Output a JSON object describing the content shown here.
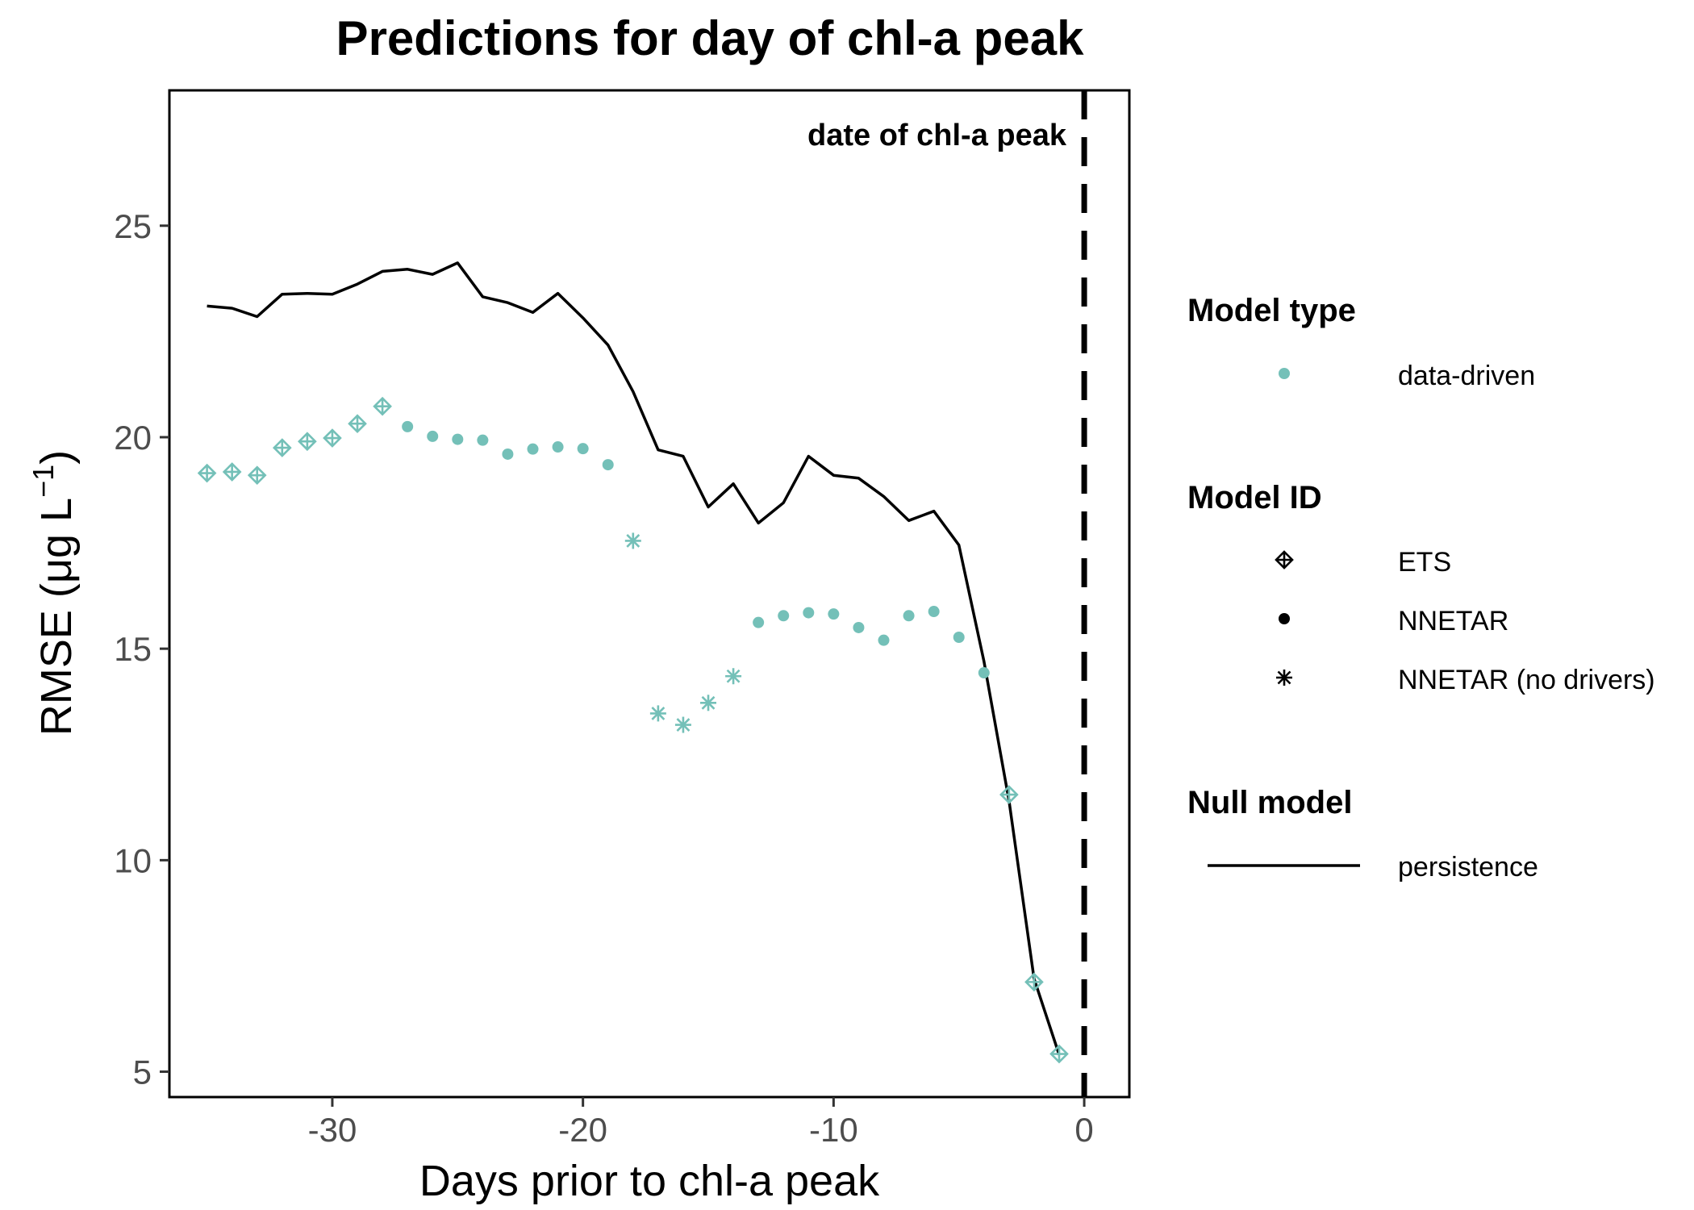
{
  "chart_data": {
    "type": "scatter",
    "title": "Predictions for day of chl-a peak",
    "xlabel": "Days prior to chl-a peak",
    "ylabel_main": "RMSE (μg L",
    "ylabel_sup": "−1",
    "ylabel_close": ")",
    "xlim": [
      -36.5,
      1.8
    ],
    "ylim": [
      4.4,
      28.2
    ],
    "x_ticks": [
      -30,
      -20,
      -10,
      0
    ],
    "x_tick_labels": [
      "-30",
      "-20",
      "-10",
      "0"
    ],
    "y_ticks": [
      5,
      10,
      15,
      20,
      25
    ],
    "y_tick_labels": [
      "5",
      "10",
      "15",
      "20",
      "25"
    ],
    "grid": false,
    "annotation": {
      "text": "date of chl-a peak",
      "vline_x": 0
    },
    "colors": {
      "data_driven": "#74c0b8",
      "persistence": "#000000",
      "vline": "#000000"
    },
    "persistence": {
      "name": "persistence",
      "x": [
        -35,
        -34,
        -33,
        -32,
        -31,
        -30,
        -29,
        -28,
        -27,
        -26,
        -25,
        -24,
        -23,
        -22,
        -21,
        -20,
        -19,
        -18,
        -17,
        -16,
        -15,
        -14,
        -13,
        -12,
        -11,
        -10,
        -9,
        -8,
        -7,
        -6,
        -5,
        -4,
        -3,
        -2,
        -1
      ],
      "y": [
        23.1,
        23.05,
        22.85,
        23.38,
        23.4,
        23.38,
        23.62,
        23.92,
        23.97,
        23.85,
        24.12,
        23.32,
        23.18,
        22.95,
        23.4,
        22.82,
        22.18,
        21.08,
        19.7,
        19.55,
        18.35,
        18.9,
        17.97,
        18.45,
        19.55,
        19.1,
        19.03,
        18.6,
        18.03,
        18.25,
        17.45,
        14.7,
        11.4,
        7.2,
        5.4
      ]
    },
    "series": [
      {
        "name": "ETS",
        "marker": "diamond-plus",
        "x": [
          -35,
          -34,
          -33,
          -32,
          -31,
          -30,
          -29,
          -28,
          -3,
          -2,
          -1
        ],
        "y": [
          19.15,
          19.18,
          19.1,
          19.75,
          19.9,
          19.98,
          20.32,
          20.73,
          11.55,
          7.12,
          5.42
        ]
      },
      {
        "name": "NNETAR",
        "marker": "circle",
        "x": [
          -27,
          -26,
          -25,
          -24,
          -23,
          -22,
          -21,
          -20,
          -19,
          -13,
          -12,
          -11,
          -10,
          -9,
          -8,
          -7,
          -6,
          -5,
          -4
        ],
        "y": [
          20.25,
          20.02,
          19.95,
          19.93,
          19.6,
          19.72,
          19.77,
          19.73,
          19.35,
          15.62,
          15.78,
          15.85,
          15.82,
          15.5,
          15.2,
          15.78,
          15.88,
          15.27,
          14.43
        ]
      },
      {
        "name": "NNETAR (no drivers)",
        "marker": "asterisk",
        "x": [
          -18,
          -17,
          -16,
          -15,
          -14
        ],
        "y": [
          17.55,
          13.47,
          13.2,
          13.72,
          14.35
        ]
      }
    ],
    "legend": {
      "placement": "right",
      "model_type": {
        "title": "Model type",
        "items": [
          "data-driven"
        ]
      },
      "model_id": {
        "title": "Model ID",
        "items": [
          "ETS",
          "NNETAR",
          "NNETAR (no drivers)"
        ]
      },
      "null_model": {
        "title": "Null model",
        "items": [
          "persistence"
        ]
      }
    }
  }
}
